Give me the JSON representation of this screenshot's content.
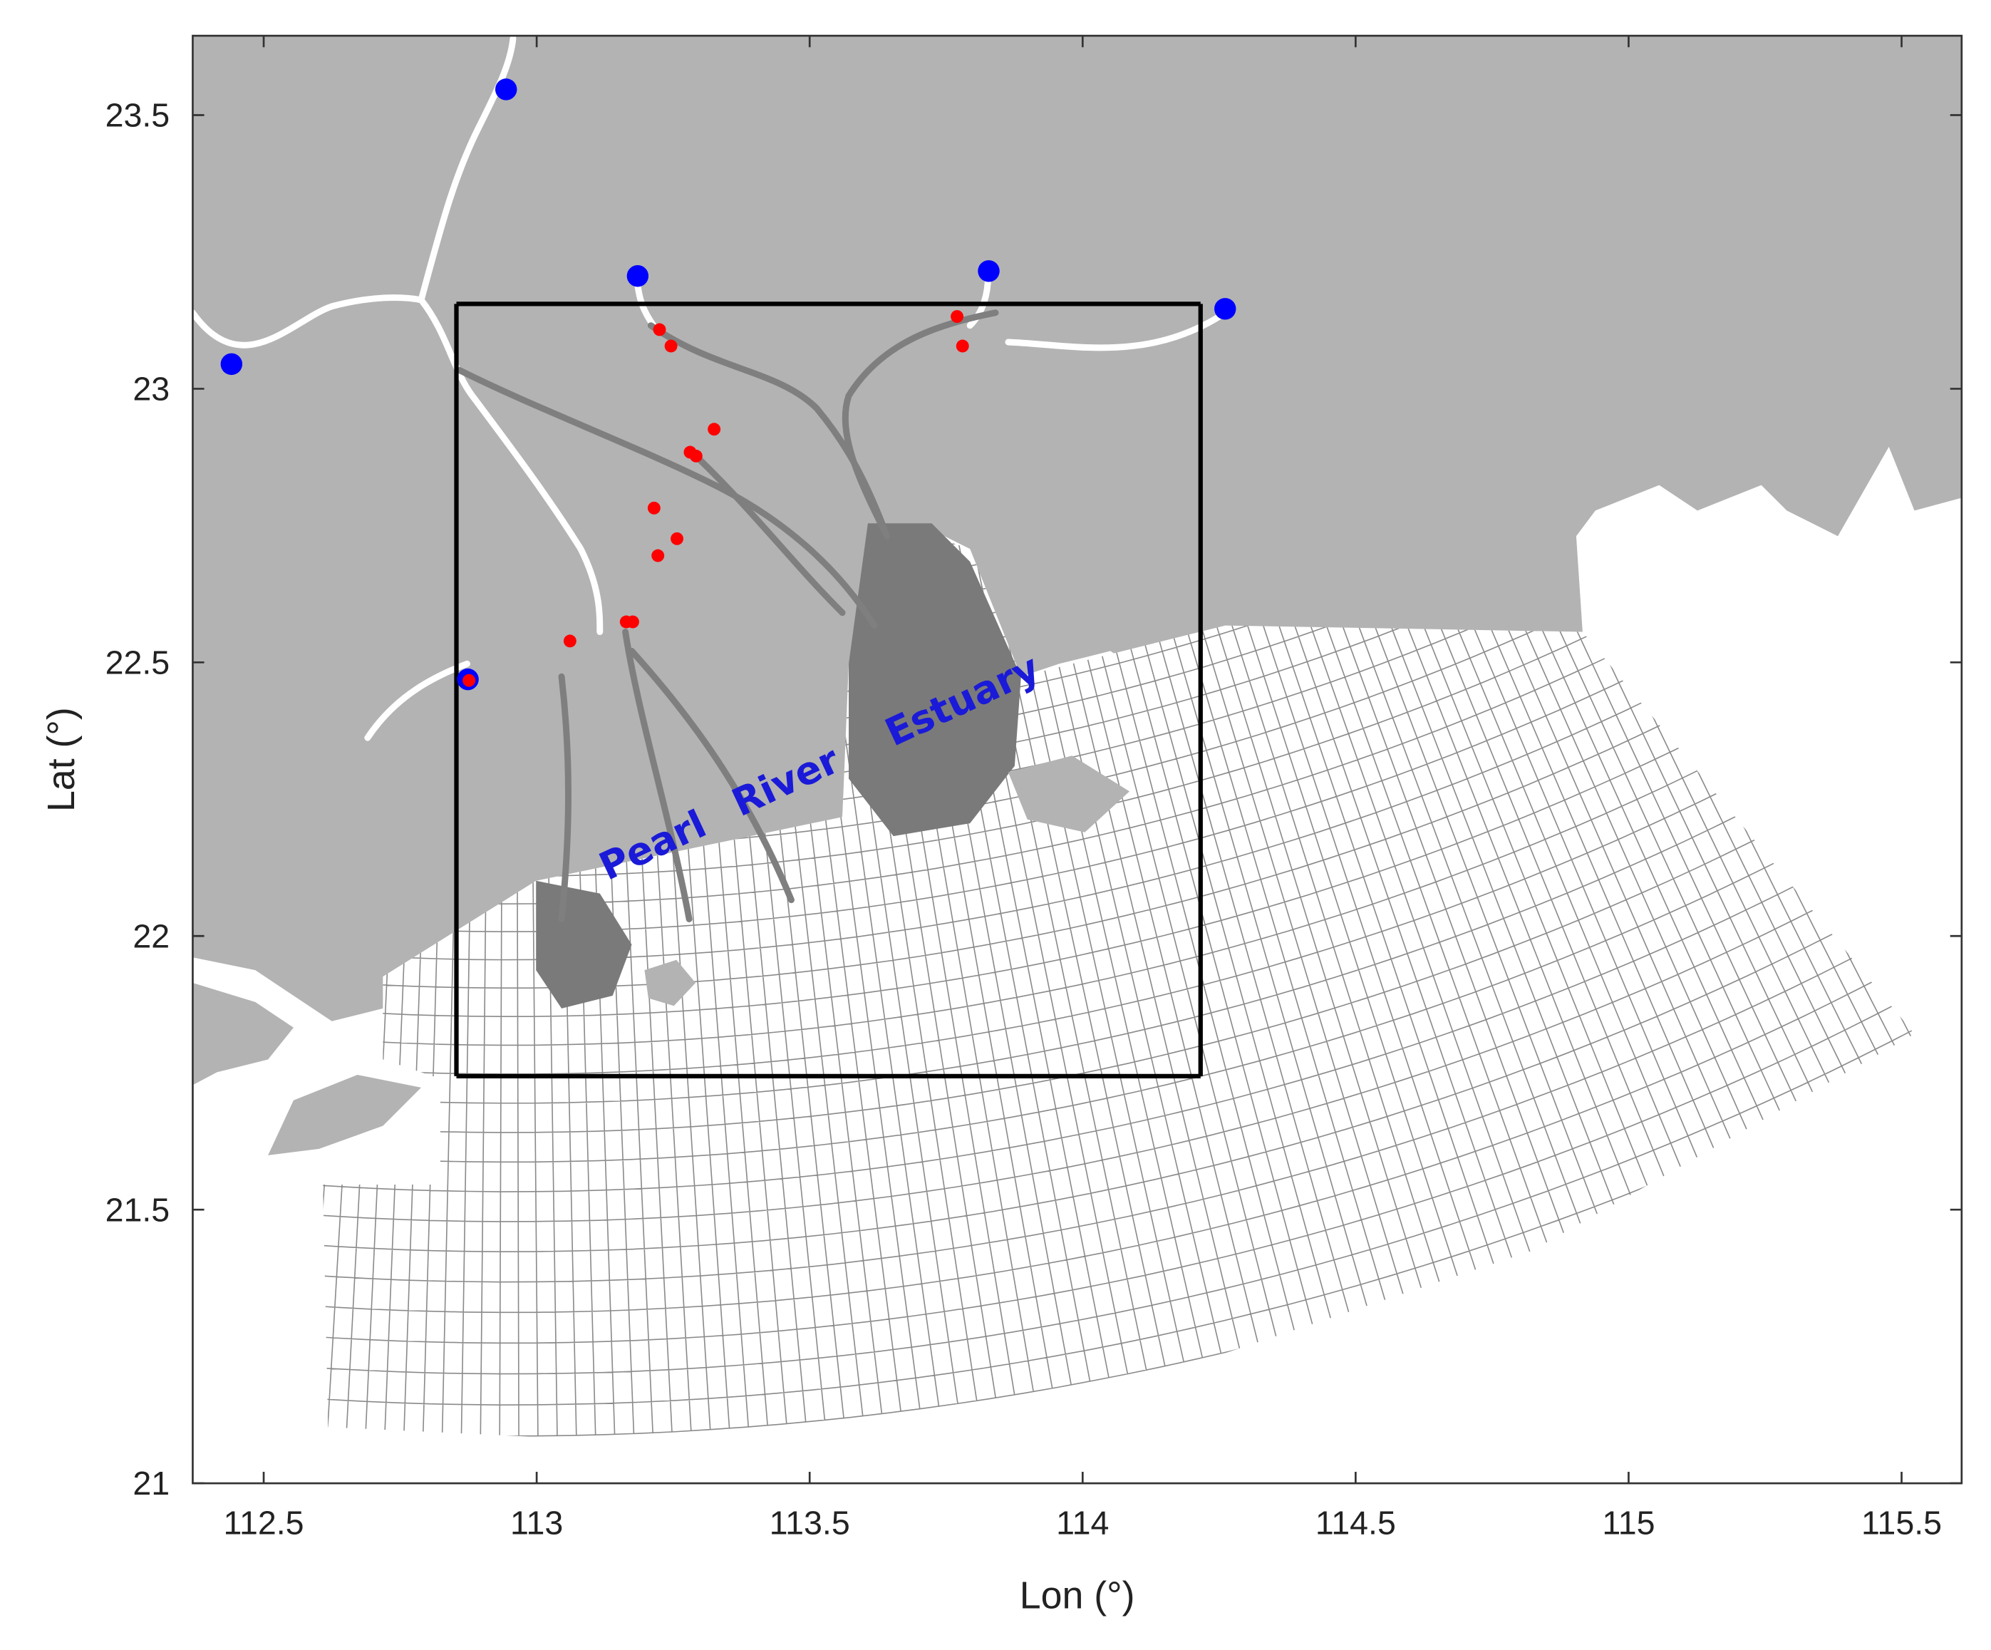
{
  "chart_data": {
    "type": "map",
    "xlabel": "Lon (°)",
    "ylabel": "Lat (°)",
    "xlim": [
      112.37,
      115.61
    ],
    "ylim": [
      21,
      23.645
    ],
    "xticks": [
      112.5,
      113,
      113.5,
      114,
      114.5,
      115,
      115.5
    ],
    "yticks": [
      21,
      21.5,
      22,
      22.5,
      23,
      23.5
    ],
    "annotations": [
      "Pearl",
      "River",
      "Estuary"
    ],
    "box": {
      "color": "#000000",
      "x": [
        112.853,
        114.216
      ],
      "y": [
        21.744,
        23.155
      ]
    },
    "series": [
      {
        "color": "#0000ff",
        "x": [
          112.944,
          112.441,
          113.185,
          113.828,
          114.261,
          112.874
        ],
        "y": [
          23.547,
          23.045,
          23.206,
          23.215,
          23.146,
          22.469
        ]
      },
      {
        "color": "#ff0000",
        "x": [
          113.225,
          113.246,
          113.77,
          113.78,
          113.325,
          113.281,
          113.292,
          113.215,
          113.257,
          113.222,
          113.061,
          113.164,
          113.176,
          112.876
        ],
        "y": [
          23.108,
          23.078,
          23.132,
          23.078,
          22.926,
          22.884,
          22.877,
          22.782,
          22.726,
          22.695,
          22.539,
          22.574,
          22.574,
          22.467
        ]
      }
    ]
  }
}
